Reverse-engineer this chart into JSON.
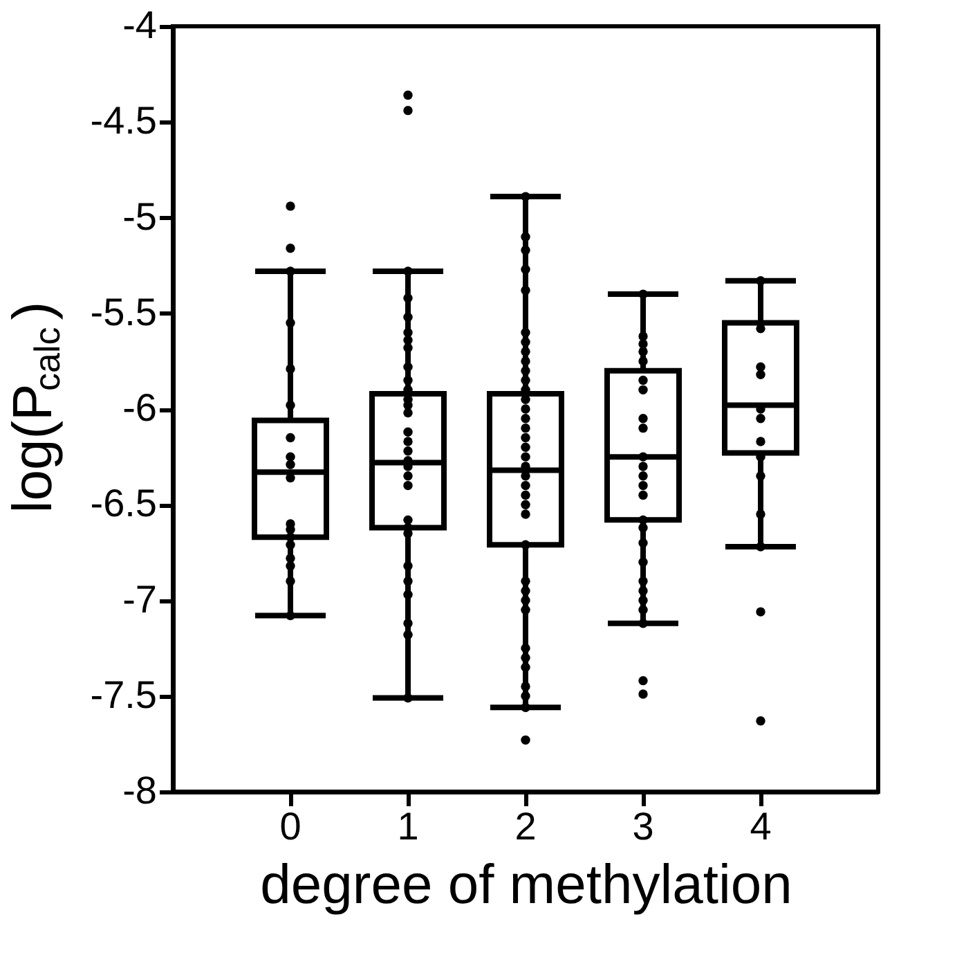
{
  "chart_data": {
    "type": "box",
    "xlabel": "degree of methylation",
    "ylabel": "log(P$_{calc}$)",
    "categories": [
      "0",
      "1",
      "2",
      "3",
      "4"
    ],
    "boxes": [
      {
        "low": -7.08,
        "q1": -6.67,
        "median": -6.33,
        "q3": -6.06,
        "high": -5.28
      },
      {
        "low": -7.51,
        "q1": -6.62,
        "median": -6.28,
        "q3": -5.92,
        "high": -5.28
      },
      {
        "low": -7.56,
        "q1": -6.71,
        "median": -6.32,
        "q3": -5.92,
        "high": -4.89
      },
      {
        "low": -7.12,
        "q1": -6.58,
        "median": -6.25,
        "q3": -5.8,
        "high": -5.4
      },
      {
        "low": -6.72,
        "q1": -6.23,
        "median": -5.98,
        "q3": -5.55,
        "high": -5.33
      }
    ],
    "series": [
      {
        "type": "scatter",
        "color": "#000000",
        "x": [
          "0",
          "0",
          "0",
          "0",
          "0",
          "0",
          "0",
          "0",
          "0",
          "0",
          "0",
          "0",
          "0",
          "0",
          "0",
          "0",
          "0",
          "0",
          "1",
          "1",
          "1",
          "1",
          "1",
          "1",
          "1",
          "1",
          "1",
          "1",
          "1",
          "1",
          "1",
          "1",
          "1",
          "1",
          "1",
          "1",
          "1",
          "1",
          "1",
          "1",
          "1",
          "1",
          "1",
          "1",
          "1",
          "1",
          "1",
          "1",
          "2",
          "2",
          "2",
          "2",
          "2",
          "2",
          "2",
          "2",
          "2",
          "2",
          "2",
          "2",
          "2",
          "2",
          "2",
          "2",
          "2",
          "2",
          "2",
          "2",
          "2",
          "2",
          "2",
          "2",
          "2",
          "2",
          "2",
          "2",
          "2",
          "2",
          "2",
          "2",
          "2",
          "2",
          "2",
          "2",
          "2",
          "3",
          "3",
          "3",
          "3",
          "3",
          "3",
          "3",
          "3",
          "3",
          "3",
          "3",
          "3",
          "3",
          "3",
          "3",
          "3",
          "3",
          "3",
          "3",
          "3",
          "3",
          "3",
          "3",
          "3",
          "3",
          "4",
          "4",
          "4",
          "4",
          "4",
          "4",
          "4",
          "4",
          "4",
          "4",
          "4",
          "4",
          "4"
        ],
        "values": [
          -4.94,
          -5.16,
          -5.28,
          -5.55,
          -5.79,
          -5.98,
          -6.15,
          -6.25,
          -6.29,
          -6.36,
          -6.6,
          -6.63,
          -6.67,
          -6.71,
          -6.78,
          -6.82,
          -6.9,
          -7.08,
          -4.36,
          -4.44,
          -5.28,
          -5.42,
          -5.52,
          -5.6,
          -5.64,
          -5.68,
          -5.78,
          -5.85,
          -5.9,
          -5.95,
          -5.98,
          -6.02,
          -6.12,
          -6.17,
          -6.22,
          -6.27,
          -6.3,
          -6.35,
          -6.4,
          -6.58,
          -6.62,
          -6.65,
          -6.82,
          -6.9,
          -6.97,
          -7.12,
          -7.18,
          -7.51,
          -4.89,
          -5.1,
          -5.17,
          -5.27,
          -5.38,
          -5.6,
          -5.65,
          -5.7,
          -5.75,
          -5.8,
          -5.85,
          -5.9,
          -5.95,
          -6.0,
          -6.05,
          -6.1,
          -6.15,
          -6.2,
          -6.25,
          -6.3,
          -6.35,
          -6.4,
          -6.45,
          -6.5,
          -6.55,
          -6.71,
          -6.9,
          -6.95,
          -7.0,
          -7.05,
          -7.25,
          -7.3,
          -7.35,
          -7.45,
          -7.5,
          -7.56,
          -7.73,
          -5.4,
          -5.62,
          -5.66,
          -5.7,
          -5.75,
          -5.85,
          -5.9,
          -6.05,
          -6.1,
          -6.25,
          -6.3,
          -6.35,
          -6.4,
          -6.45,
          -6.58,
          -6.62,
          -6.7,
          -6.8,
          -6.9,
          -6.95,
          -7.0,
          -7.05,
          -7.12,
          -7.42,
          -7.49,
          -5.33,
          -5.58,
          -5.78,
          -5.82,
          -6.0,
          -6.05,
          -6.17,
          -6.25,
          -6.35,
          -6.55,
          -6.72,
          -7.06,
          -7.63
        ]
      }
    ],
    "ylim": [
      -8,
      -4
    ],
    "yticks": [
      -8,
      -7.5,
      -7,
      -6.5,
      -6,
      -5.5,
      -5,
      -4.5,
      -4
    ],
    "grid": false
  }
}
